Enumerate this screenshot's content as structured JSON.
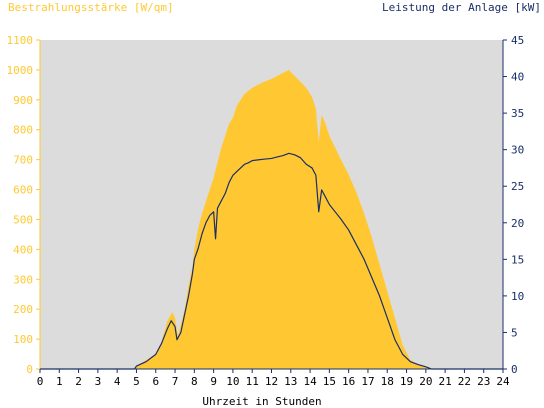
{
  "chart_data": {
    "type": "area",
    "left_axis_title": "Bestrahlungsstärke [W/qm]",
    "right_axis_title": "Leistung der Anlage [kW]",
    "xlabel": "Uhrzeit in Stunden",
    "xlim": [
      0,
      24
    ],
    "ylim_left": [
      0,
      1100
    ],
    "ylim_right": [
      0,
      45
    ],
    "x_ticks": [
      "0",
      "1",
      "2",
      "3",
      "4",
      "5",
      "6",
      "7",
      "8",
      "9",
      "10",
      "11",
      "12",
      "13",
      "14",
      "15",
      "16",
      "17",
      "18",
      "19",
      "20",
      "21",
      "22",
      "23",
      "24"
    ],
    "left_ticks": [
      "0",
      "100",
      "200",
      "300",
      "400",
      "500",
      "600",
      "700",
      "800",
      "900",
      "1000",
      "1100"
    ],
    "right_ticks": [
      "0",
      "5",
      "10",
      "15",
      "20",
      "25",
      "30",
      "35",
      "40",
      "45"
    ],
    "grid": false,
    "colors": {
      "plot_bg": "#dcdcdc",
      "irradiance": "#ffc832",
      "power": "#1a2f6a",
      "left_axis_text": "#ffc832",
      "right_axis_text": "#1a2f6a",
      "x_axis_text": "#000000"
    },
    "series": [
      {
        "name": "Bestrahlungsstärke [W/qm]",
        "axis": "left",
        "kind": "area",
        "points": [
          [
            0,
            0
          ],
          [
            4.9,
            0
          ],
          [
            5.0,
            10
          ],
          [
            5.5,
            30
          ],
          [
            6.0,
            50
          ],
          [
            6.3,
            90
          ],
          [
            6.6,
            160
          ],
          [
            6.85,
            190
          ],
          [
            7.0,
            170
          ],
          [
            7.15,
            110
          ],
          [
            7.3,
            150
          ],
          [
            7.5,
            200
          ],
          [
            7.7,
            280
          ],
          [
            7.9,
            340
          ],
          [
            8.0,
            400
          ],
          [
            8.2,
            470
          ],
          [
            8.4,
            520
          ],
          [
            8.6,
            560
          ],
          [
            8.8,
            600
          ],
          [
            9.0,
            640
          ],
          [
            9.2,
            690
          ],
          [
            9.4,
            740
          ],
          [
            9.6,
            780
          ],
          [
            9.8,
            820
          ],
          [
            10.0,
            840
          ],
          [
            10.2,
            880
          ],
          [
            10.4,
            900
          ],
          [
            10.6,
            920
          ],
          [
            10.8,
            930
          ],
          [
            11.0,
            940
          ],
          [
            11.3,
            950
          ],
          [
            11.6,
            960
          ],
          [
            12.0,
            970
          ],
          [
            12.3,
            980
          ],
          [
            12.6,
            990
          ],
          [
            12.9,
            1000
          ],
          [
            13.2,
            980
          ],
          [
            13.5,
            960
          ],
          [
            13.8,
            940
          ],
          [
            14.1,
            910
          ],
          [
            14.3,
            870
          ],
          [
            14.45,
            760
          ],
          [
            14.6,
            850
          ],
          [
            14.8,
            820
          ],
          [
            15.0,
            780
          ],
          [
            15.3,
            740
          ],
          [
            15.6,
            700
          ],
          [
            16.0,
            650
          ],
          [
            16.4,
            590
          ],
          [
            16.8,
            520
          ],
          [
            17.2,
            440
          ],
          [
            17.6,
            350
          ],
          [
            18.0,
            260
          ],
          [
            18.4,
            170
          ],
          [
            18.8,
            80
          ],
          [
            19.2,
            30
          ],
          [
            19.6,
            15
          ],
          [
            20.0,
            8
          ],
          [
            20.3,
            0
          ],
          [
            24,
            0
          ]
        ]
      },
      {
        "name": "Leistung der Anlage [kW]",
        "axis": "right",
        "kind": "line",
        "points": [
          [
            0,
            0
          ],
          [
            4.9,
            0
          ],
          [
            5.0,
            0.4
          ],
          [
            5.5,
            1.0
          ],
          [
            6.0,
            2.0
          ],
          [
            6.3,
            3.5
          ],
          [
            6.6,
            5.5
          ],
          [
            6.8,
            6.6
          ],
          [
            7.0,
            5.8
          ],
          [
            7.1,
            4.0
          ],
          [
            7.3,
            5.0
          ],
          [
            7.5,
            7.5
          ],
          [
            7.7,
            10.0
          ],
          [
            7.9,
            13.0
          ],
          [
            8.0,
            15.0
          ],
          [
            8.2,
            16.5
          ],
          [
            8.4,
            18.5
          ],
          [
            8.6,
            20.0
          ],
          [
            8.8,
            21.0
          ],
          [
            9.0,
            21.5
          ],
          [
            9.1,
            17.8
          ],
          [
            9.2,
            22.0
          ],
          [
            9.4,
            23.0
          ],
          [
            9.6,
            24.0
          ],
          [
            9.8,
            25.5
          ],
          [
            10.0,
            26.5
          ],
          [
            10.2,
            27.0
          ],
          [
            10.4,
            27.5
          ],
          [
            10.6,
            28.0
          ],
          [
            10.8,
            28.2
          ],
          [
            11.0,
            28.5
          ],
          [
            11.3,
            28.6
          ],
          [
            11.6,
            28.7
          ],
          [
            12.0,
            28.8
          ],
          [
            12.3,
            29.0
          ],
          [
            12.6,
            29.2
          ],
          [
            12.9,
            29.5
          ],
          [
            13.2,
            29.3
          ],
          [
            13.5,
            28.9
          ],
          [
            13.8,
            28.0
          ],
          [
            14.1,
            27.5
          ],
          [
            14.3,
            26.5
          ],
          [
            14.45,
            21.5
          ],
          [
            14.6,
            24.5
          ],
          [
            14.8,
            23.5
          ],
          [
            15.0,
            22.5
          ],
          [
            15.3,
            21.5
          ],
          [
            15.6,
            20.5
          ],
          [
            16.0,
            19.0
          ],
          [
            16.4,
            17.0
          ],
          [
            16.8,
            15.0
          ],
          [
            17.2,
            12.5
          ],
          [
            17.6,
            10.0
          ],
          [
            18.0,
            7.0
          ],
          [
            18.4,
            4.0
          ],
          [
            18.8,
            2.0
          ],
          [
            19.2,
            1.0
          ],
          [
            19.6,
            0.6
          ],
          [
            20.0,
            0.3
          ],
          [
            20.3,
            0
          ],
          [
            24,
            0
          ]
        ]
      }
    ]
  }
}
